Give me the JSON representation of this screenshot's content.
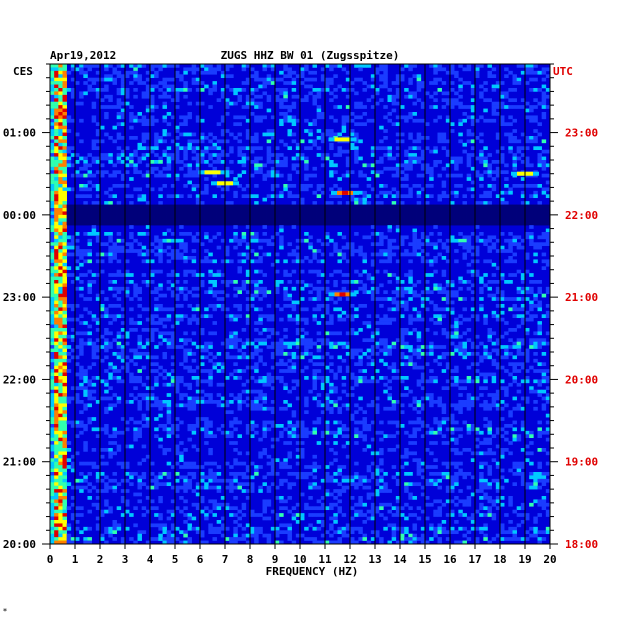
{
  "header": {
    "date": "Apr19,2012",
    "station": "ZUGS HHZ BW 01 (Zugsspitze)",
    "left_zone": "CES",
    "right_zone": "UTC"
  },
  "footnote": "*",
  "chart_data": {
    "type": "heatmap",
    "xlabel": "FREQUENCY (HZ)",
    "xlim": [
      0,
      20
    ],
    "x_ticks": [
      "0",
      "1",
      "2",
      "3",
      "4",
      "5",
      "6",
      "7",
      "8",
      "9",
      "10",
      "11",
      "12",
      "13",
      "14",
      "15",
      "16",
      "17",
      "18",
      "19",
      "20"
    ],
    "left_time_labels": [
      "01:00",
      "00:00",
      "23:00",
      "22:00",
      "21:00",
      "20:00"
    ],
    "right_time_labels": [
      "23:00",
      "22:00",
      "21:00",
      "20:00",
      "19:00",
      "18:00"
    ],
    "time_range_local": [
      "20:00",
      "01:50"
    ],
    "colorscale": [
      "#00007a",
      "#0000d8",
      "#1a3cff",
      "#00c8ff",
      "#30ffb0",
      "#ffff00",
      "#ff8000",
      "#e00000"
    ],
    "grid": true,
    "low_frequency_band_hz": [
      0,
      0.7
    ],
    "quiet_band_local": "00:00",
    "hotspots": [
      {
        "freq_hz": 11.7,
        "time_local": "23:02",
        "intensity": "high"
      },
      {
        "freq_hz": 11.7,
        "time_local": "00:55",
        "intensity": "medium"
      },
      {
        "freq_hz": 11.8,
        "time_local": "00:16",
        "intensity": "high"
      },
      {
        "freq_hz": 19.0,
        "time_local": "00:30",
        "intensity": "medium"
      },
      {
        "freq_hz": 6.5,
        "time_local": "00:31",
        "intensity": "medium"
      },
      {
        "freq_hz": 7.0,
        "time_local": "00:23",
        "intensity": "medium"
      }
    ]
  }
}
